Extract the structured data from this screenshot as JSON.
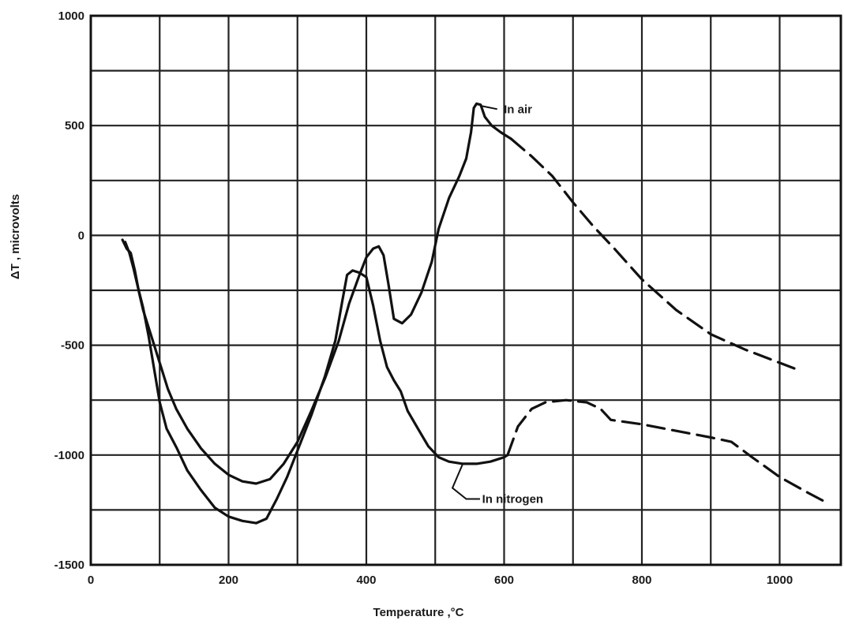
{
  "chart_data": {
    "type": "line",
    "title": "",
    "xlabel": "Temperature ,°C",
    "ylabel": "ΔT , microvolts",
    "xlim": [
      0,
      1080
    ],
    "ylim": [
      -1500,
      1000
    ],
    "x_ticks": [
      0,
      200,
      400,
      600,
      800,
      1000
    ],
    "y_ticks": [
      1000,
      500,
      0,
      -500,
      -1000,
      -1500
    ],
    "x_tick_labels": [
      "0",
      "200",
      "400",
      "600",
      "800",
      "1000"
    ],
    "y_tick_labels": [
      "1000",
      "500",
      "0",
      "-500",
      "-1000",
      "-1500"
    ],
    "grid": true,
    "line_color": "#111111",
    "series": [
      {
        "name": "In air",
        "solid": [
          [
            46,
            -20
          ],
          [
            52,
            -60
          ],
          [
            58,
            -80
          ],
          [
            64,
            -160
          ],
          [
            70,
            -260
          ],
          [
            76,
            -340
          ],
          [
            84,
            -420
          ],
          [
            92,
            -500
          ],
          [
            102,
            -600
          ],
          [
            112,
            -700
          ],
          [
            124,
            -790
          ],
          [
            140,
            -880
          ],
          [
            160,
            -970
          ],
          [
            180,
            -1040
          ],
          [
            200,
            -1090
          ],
          [
            220,
            -1120
          ],
          [
            240,
            -1130
          ],
          [
            260,
            -1110
          ],
          [
            280,
            -1040
          ],
          [
            300,
            -940
          ],
          [
            320,
            -800
          ],
          [
            340,
            -650
          ],
          [
            360,
            -480
          ],
          [
            375,
            -310
          ],
          [
            390,
            -180
          ],
          [
            400,
            -100
          ],
          [
            410,
            -60
          ],
          [
            418,
            -50
          ],
          [
            425,
            -90
          ],
          [
            432,
            -220
          ],
          [
            440,
            -380
          ],
          [
            452,
            -400
          ],
          [
            465,
            -360
          ],
          [
            480,
            -260
          ],
          [
            495,
            -120
          ],
          [
            505,
            30
          ],
          [
            520,
            170
          ],
          [
            535,
            270
          ],
          [
            545,
            350
          ],
          [
            552,
            470
          ],
          [
            556,
            580
          ],
          [
            560,
            600
          ],
          [
            566,
            595
          ],
          [
            572,
            540
          ],
          [
            582,
            500
          ],
          [
            595,
            470
          ],
          [
            610,
            440
          ]
        ],
        "dashed": [
          [
            610,
            440
          ],
          [
            640,
            360
          ],
          [
            670,
            270
          ],
          [
            700,
            150
          ],
          [
            730,
            40
          ],
          [
            760,
            -60
          ],
          [
            800,
            -200
          ],
          [
            850,
            -340
          ],
          [
            900,
            -450
          ],
          [
            950,
            -520
          ],
          [
            1000,
            -580
          ],
          [
            1025,
            -610
          ]
        ]
      },
      {
        "name": "In nitrogen",
        "solid": [
          [
            50,
            -30
          ],
          [
            56,
            -80
          ],
          [
            62,
            -150
          ],
          [
            68,
            -230
          ],
          [
            76,
            -330
          ],
          [
            84,
            -460
          ],
          [
            92,
            -610
          ],
          [
            100,
            -760
          ],
          [
            110,
            -880
          ],
          [
            125,
            -970
          ],
          [
            140,
            -1070
          ],
          [
            160,
            -1160
          ],
          [
            180,
            -1240
          ],
          [
            200,
            -1280
          ],
          [
            220,
            -1300
          ],
          [
            240,
            -1310
          ],
          [
            255,
            -1290
          ],
          [
            270,
            -1200
          ],
          [
            285,
            -1100
          ],
          [
            300,
            -980
          ],
          [
            320,
            -820
          ],
          [
            340,
            -640
          ],
          [
            355,
            -480
          ],
          [
            365,
            -300
          ],
          [
            372,
            -180
          ],
          [
            380,
            -160
          ],
          [
            390,
            -170
          ],
          [
            400,
            -190
          ],
          [
            410,
            -320
          ],
          [
            420,
            -480
          ],
          [
            430,
            -600
          ],
          [
            440,
            -660
          ],
          [
            450,
            -710
          ],
          [
            460,
            -800
          ],
          [
            475,
            -880
          ],
          [
            490,
            -960
          ],
          [
            505,
            -1010
          ],
          [
            520,
            -1030
          ],
          [
            540,
            -1040
          ],
          [
            560,
            -1040
          ],
          [
            580,
            -1030
          ],
          [
            600,
            -1010
          ],
          [
            605,
            -1000
          ]
        ],
        "dashed": [
          [
            605,
            -1000
          ],
          [
            620,
            -870
          ],
          [
            640,
            -790
          ],
          [
            660,
            -760
          ],
          [
            690,
            -750
          ],
          [
            720,
            -760
          ],
          [
            740,
            -790
          ],
          [
            755,
            -840
          ],
          [
            800,
            -860
          ],
          [
            850,
            -890
          ],
          [
            900,
            -920
          ],
          [
            930,
            -940
          ],
          [
            960,
            -1010
          ],
          [
            1000,
            -1100
          ],
          [
            1040,
            -1170
          ],
          [
            1070,
            -1220
          ]
        ]
      }
    ],
    "annotations": [
      {
        "text": "In air",
        "x": 595,
        "y": 575
      },
      {
        "text": "In nitrogen",
        "x": 568,
        "y": -1130
      }
    ]
  }
}
